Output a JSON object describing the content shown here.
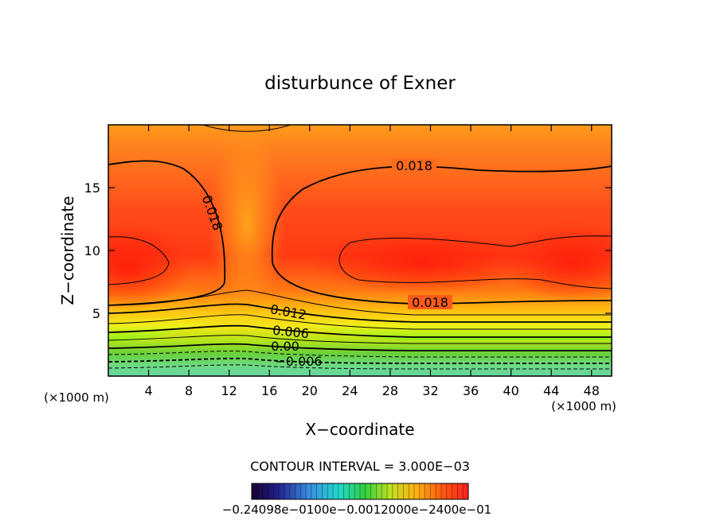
{
  "chart_data": {
    "type": "heatmap",
    "subtype": "filled-contour",
    "title": "disturbunce of Exner",
    "xlabel": "X−coordinate",
    "ylabel": "Z−coordinate",
    "x_unit_left": "(×1000 m)",
    "x_unit_right": "(×1000 m)",
    "xlim": [
      0,
      50
    ],
    "ylim": [
      0,
      20
    ],
    "x_ticks": [
      4,
      8,
      12,
      16,
      20,
      24,
      28,
      32,
      36,
      40,
      44,
      48
    ],
    "x_tick_labels": [
      "4",
      "8",
      "12",
      "16",
      "20",
      "24",
      "28",
      "32",
      "36",
      "40",
      "44",
      "48"
    ],
    "y_ticks": [
      5,
      10,
      15
    ],
    "y_tick_labels": [
      "5",
      "10",
      "15"
    ],
    "contour_interval_text": "CONTOUR INTERVAL = 3.000E−03",
    "contour_interval": 0.003,
    "contour_labels": [
      "0.018",
      "0.018",
      "0.018",
      "0.012",
      "0.006",
      "0.00",
      "−0.006"
    ],
    "colorbar_labels_text": "−0.24098e−0100e−0.0012000e−2400e−01",
    "colormap": "rainbow (blue → cyan → green → yellow → orange → red)",
    "grid": false,
    "legend": "bottom colorbar"
  }
}
